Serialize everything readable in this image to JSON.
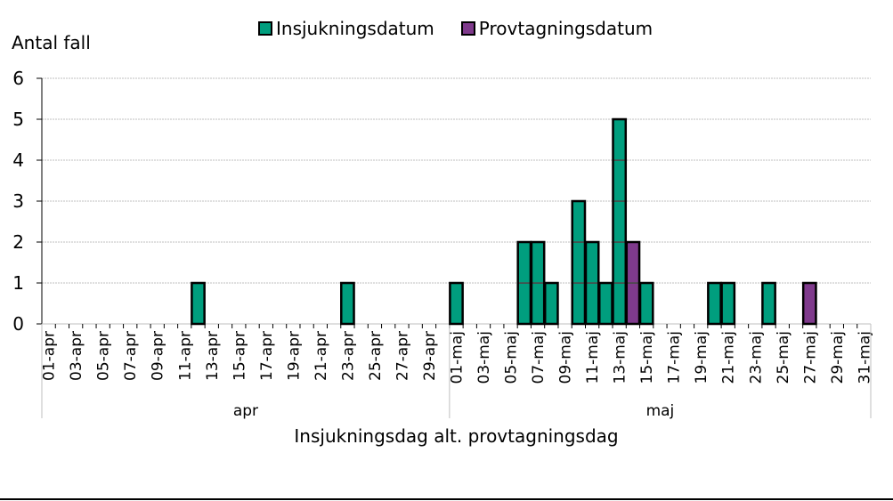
{
  "chart_data": {
    "type": "bar",
    "stacked": true,
    "title": "",
    "ylabel": "Antal fall",
    "xlabel": "Insjukningsdag alt. provtagningsdag",
    "ylim": [
      0,
      6
    ],
    "yticks": [
      0,
      1,
      2,
      3,
      4,
      5,
      6
    ],
    "grid": true,
    "legend_position": "top",
    "month_groups": [
      {
        "label": "apr",
        "start_index": 0,
        "days": 30
      },
      {
        "label": "maj",
        "start_index": 30,
        "days": 31
      }
    ],
    "tick_labels_shown": [
      "01-apr",
      "03-apr",
      "05-apr",
      "07-apr",
      "09-apr",
      "11-apr",
      "13-apr",
      "15-apr",
      "17-apr",
      "19-apr",
      "21-apr",
      "23-apr",
      "25-apr",
      "27-apr",
      "29-apr",
      "01-maj",
      "03-maj",
      "05-maj",
      "07-maj",
      "09-maj",
      "11-maj",
      "13-maj",
      "15-maj",
      "17-maj",
      "19-maj",
      "21-maj",
      "23-maj",
      "25-maj",
      "27-maj",
      "29-maj",
      "31-maj"
    ],
    "series": [
      {
        "name": "Insjukningsdatum",
        "color": "#009E7E",
        "points": [
          {
            "date": "12-apr",
            "value": 1
          },
          {
            "date": "23-apr",
            "value": 1
          },
          {
            "date": "01-maj",
            "value": 1
          },
          {
            "date": "06-maj",
            "value": 2
          },
          {
            "date": "07-maj",
            "value": 2
          },
          {
            "date": "08-maj",
            "value": 1
          },
          {
            "date": "10-maj",
            "value": 3
          },
          {
            "date": "11-maj",
            "value": 2
          },
          {
            "date": "12-maj",
            "value": 1
          },
          {
            "date": "13-maj",
            "value": 5
          },
          {
            "date": "15-maj",
            "value": 1
          },
          {
            "date": "20-maj",
            "value": 1
          },
          {
            "date": "21-maj",
            "value": 1
          },
          {
            "date": "24-maj",
            "value": 1
          }
        ]
      },
      {
        "name": "Provtagningsdatum",
        "color": "#7F3A8C",
        "points": [
          {
            "date": "14-maj",
            "value": 2
          },
          {
            "date": "27-maj",
            "value": 1
          }
        ]
      }
    ]
  },
  "legend": {
    "items": [
      {
        "label": "Insjukningsdatum",
        "color": "#009E7E"
      },
      {
        "label": "Provtagningsdatum",
        "color": "#7F3A8C"
      }
    ]
  },
  "axes": {
    "ylabel": "Antal fall",
    "xlabel": "Insjukningsdag alt. provtagningsdag"
  }
}
